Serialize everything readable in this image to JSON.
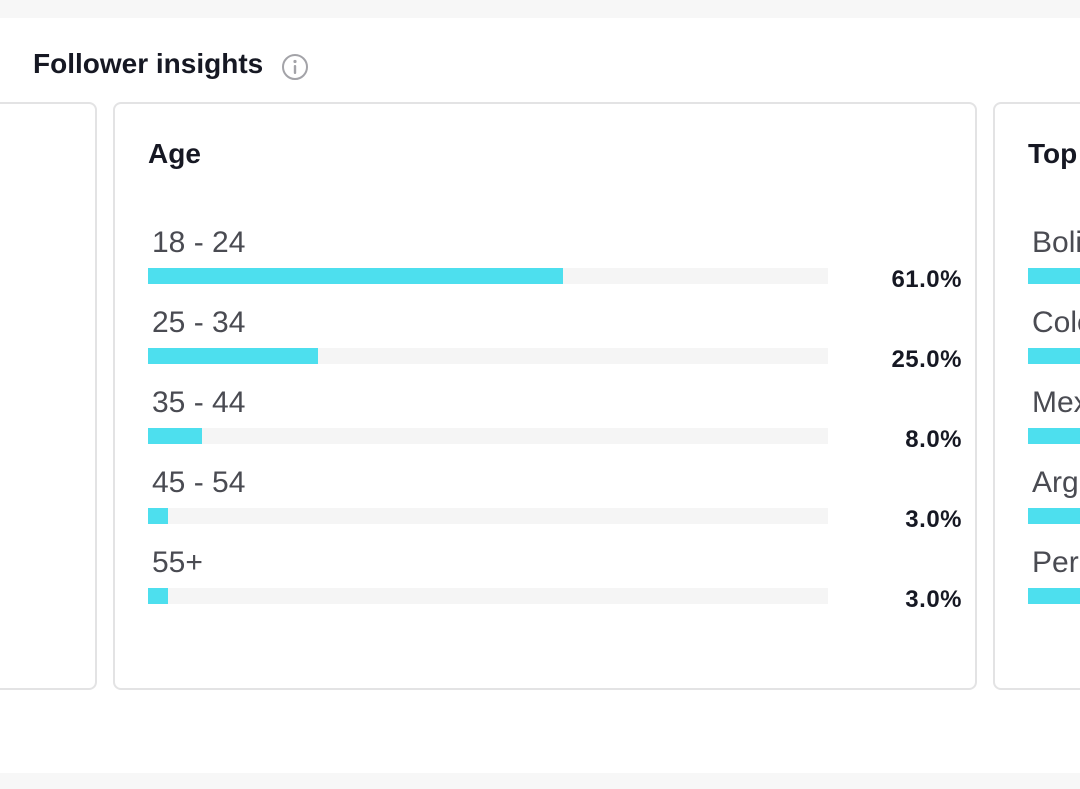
{
  "section": {
    "title": "Follower insights",
    "info_icon": "info-circle-icon"
  },
  "age_card": {
    "title": "Age",
    "accent_color": "#4ddfee",
    "rows": [
      {
        "label": "18 - 24",
        "value": "61.0%",
        "fraction": 0.61
      },
      {
        "label": "25 - 34",
        "value": "25.0%",
        "fraction": 0.25
      },
      {
        "label": "35 - 44",
        "value": "8.0%",
        "fraction": 0.08
      },
      {
        "label": "45 - 54",
        "value": "3.0%",
        "fraction": 0.03
      },
      {
        "label": "55+",
        "value": "3.0%",
        "fraction": 0.03
      }
    ]
  },
  "top_card": {
    "title": "Top",
    "rows": [
      {
        "label": "Boli"
      },
      {
        "label": "Colo"
      },
      {
        "label": "Mex"
      },
      {
        "label": "Arg"
      },
      {
        "label": "Peru"
      }
    ]
  }
}
